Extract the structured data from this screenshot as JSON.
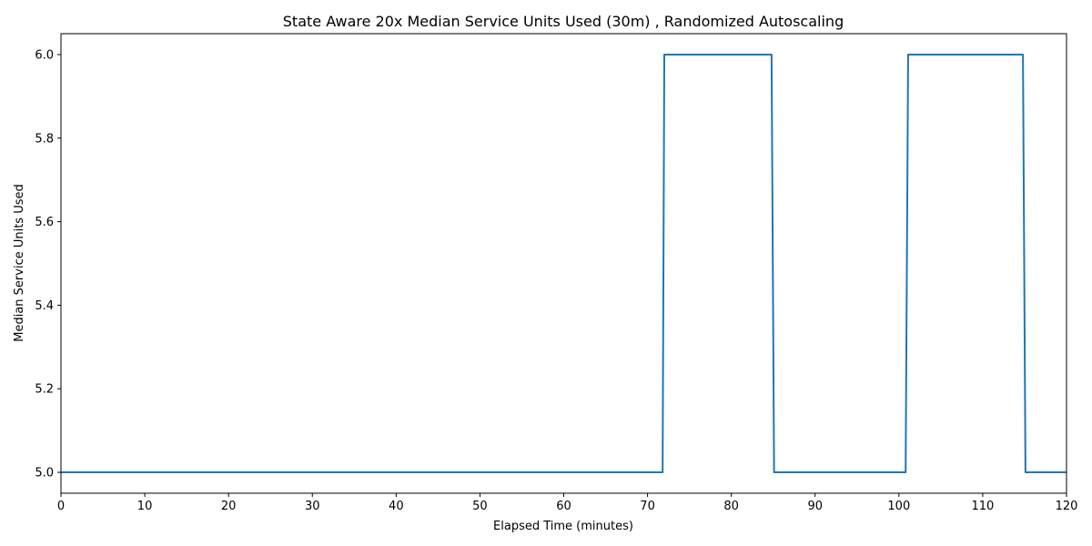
{
  "chart_data": {
    "type": "line",
    "title": "State Aware 20x Median Service Units Used (30m) , Randomized Autoscaling",
    "xlabel": "Elapsed Time (minutes)",
    "ylabel": "Median Service Units Used",
    "xlim": [
      0,
      120
    ],
    "ylim": [
      4.95,
      6.05
    ],
    "xticks": [
      0,
      10,
      20,
      30,
      40,
      50,
      60,
      70,
      80,
      90,
      100,
      110,
      120
    ],
    "yticks": [
      5.0,
      5.2,
      5.4,
      5.6,
      5.8,
      6.0
    ],
    "ytick_labels": [
      "5.0",
      "5.2",
      "5.4",
      "5.6",
      "5.8",
      "6.0"
    ],
    "grid": false,
    "legend": "none",
    "series": [
      {
        "color": "#1f77b4",
        "x": [
          0,
          71.8,
          72.0,
          84.8,
          85.1,
          100.8,
          101.1,
          114.8,
          115.1,
          120
        ],
        "y": [
          5,
          5,
          6,
          6,
          5,
          5,
          6,
          6,
          5,
          5
        ]
      }
    ]
  }
}
